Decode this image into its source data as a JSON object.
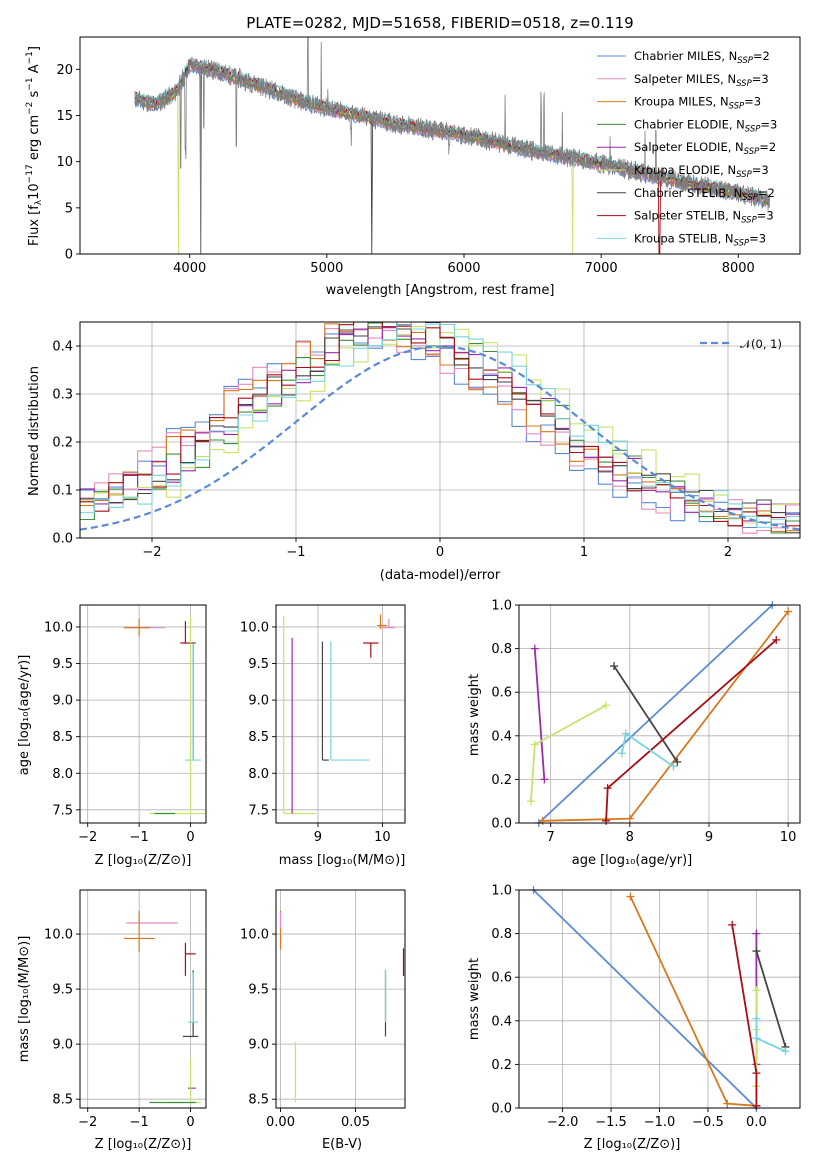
{
  "colors": {
    "Chabrier MILES": "#5b8bd6",
    "Salpeter MILES": "#e58ac2",
    "Kroupa MILES": "#d8781e",
    "Chabrier ELODIE": "#3f8f3f",
    "Salpeter ELODIE": "#9c2bab",
    "Kroupa ELODIE": "#c8e36c",
    "Chabrier STELIB": "#454545",
    "Salpeter STELIB": "#a80d14",
    "Kroupa STELIB": "#79d4db",
    "data": "#808080"
  },
  "chart_data": [
    {
      "id": "spectrum",
      "type": "line",
      "title": "PLATE=0282, MJD=51658, FIBERID=0518, z=0.119",
      "xlabel": "wavelength [Angstrom, rest frame]",
      "ylabel": "Flux [fλ10⁻¹⁷ erg cm⁻² s⁻¹ A⁻¹]",
      "xlim": [
        3200,
        8450
      ],
      "ylim": [
        0,
        23.5
      ],
      "xticks": [
        4000,
        5000,
        6000,
        7000,
        8000
      ],
      "yticks": [
        0,
        5,
        10,
        15,
        20
      ],
      "legend_position": "top-right",
      "legend": [
        {
          "base": "Chabrier MILES, N",
          "sub": "SSP",
          "tail": "=2",
          "color": "#5b8bd6"
        },
        {
          "base": "Salpeter MILES, N",
          "sub": "SSP",
          "tail": "=3",
          "color": "#e58ac2"
        },
        {
          "base": "Kroupa MILES, N",
          "sub": "SSP",
          "tail": "=3",
          "color": "#d8781e"
        },
        {
          "base": "Chabrier ELODIE, N",
          "sub": "SSP",
          "tail": "=3",
          "color": "#3f8f3f"
        },
        {
          "base": "Salpeter ELODIE, N",
          "sub": "SSP",
          "tail": "=2",
          "color": "#9c2bab"
        },
        {
          "base": "Kroupa ELODIE, N",
          "sub": "SSP",
          "tail": "=3",
          "color": "#c8e36c"
        },
        {
          "base": "Chabrier STELIB, N",
          "sub": "SSP",
          "tail": "=2",
          "color": "#454545"
        },
        {
          "base": "Salpeter STELIB, N",
          "sub": "SSP",
          "tail": "=3",
          "color": "#a80d14"
        },
        {
          "base": "Kroupa STELIB, N",
          "sub": "SSP",
          "tail": "=3",
          "color": "#79d4db"
        }
      ],
      "continuum": [
        [
          3600,
          16.8
        ],
        [
          3750,
          16.2
        ],
        [
          3900,
          17.5
        ],
        [
          4000,
          20.5
        ],
        [
          4200,
          19.8
        ],
        [
          4500,
          18.3
        ],
        [
          4800,
          16.6
        ],
        [
          5000,
          15.8
        ],
        [
          5500,
          14.1
        ],
        [
          6000,
          12.9
        ],
        [
          6500,
          11.2
        ],
        [
          7000,
          9.8
        ],
        [
          7500,
          8.1
        ],
        [
          8000,
          6.6
        ],
        [
          8230,
          5.8
        ]
      ],
      "emission_lines": [
        [
          4861,
          13.5
        ],
        [
          4959,
          7.0
        ],
        [
          5007,
          2.0
        ],
        [
          6300,
          6.0
        ],
        [
          6563,
          7.0
        ],
        [
          6583,
          5.5
        ],
        [
          6717,
          4.0
        ],
        [
          7065,
          4.0
        ],
        [
          7320,
          4.0
        ],
        [
          7400,
          6.0
        ]
      ],
      "absorption_lines": [
        [
          3934,
          -10
        ],
        [
          3969,
          -9
        ],
        [
          4102,
          -6
        ],
        [
          4340,
          -8
        ],
        [
          4861,
          -5
        ],
        [
          5175,
          -2.5
        ],
        [
          5892,
          -2
        ],
        [
          6563,
          -1.5
        ]
      ],
      "model_drops": [
        [
          3530,
          "#d8781e"
        ],
        [
          3920,
          "#c8e36c"
        ],
        [
          4080,
          "#454545"
        ],
        [
          5330,
          "#454545"
        ],
        [
          6790,
          "#c8e36c"
        ],
        [
          7425,
          "#a80d14"
        ]
      ]
    },
    {
      "id": "residuals",
      "type": "histogram",
      "xlabel": "(data-model)/error",
      "ylabel": "Normed distribution",
      "xlim": [
        -2.5,
        2.5
      ],
      "ylim": [
        0,
        0.45
      ],
      "xticks": [
        -2,
        -1,
        0,
        1,
        2
      ],
      "yticks": [
        0.0,
        0.1,
        0.2,
        0.3,
        0.4
      ],
      "legend_position": "top-right",
      "reference_label": "𝒩(0, 1)",
      "reference_color": "#5b8bd6",
      "bin_width": 0.1,
      "bin_start": -2.5,
      "series": [
        {
          "name": "Chabrier MILES",
          "color": "#5b8bd6",
          "offset": -0.55,
          "seed": 1
        },
        {
          "name": "Salpeter MILES",
          "color": "#e58ac2",
          "offset": -0.5,
          "seed": 2
        },
        {
          "name": "Kroupa MILES",
          "color": "#d8781e",
          "offset": -0.45,
          "seed": 3
        },
        {
          "name": "Chabrier ELODIE",
          "color": "#3f8f3f",
          "offset": -0.25,
          "seed": 4
        },
        {
          "name": "Salpeter ELODIE",
          "color": "#9c2bab",
          "offset": -0.3,
          "seed": 5
        },
        {
          "name": "Kroupa ELODIE",
          "color": "#c8e36c",
          "offset": -0.1,
          "seed": 6
        },
        {
          "name": "Chabrier STELIB",
          "color": "#454545",
          "offset": -0.3,
          "seed": 7
        },
        {
          "name": "Salpeter STELIB",
          "color": "#a80d14",
          "offset": -0.35,
          "seed": 8
        },
        {
          "name": "Kroupa STELIB",
          "color": "#79d4db",
          "offset": -0.2,
          "seed": 9
        }
      ]
    },
    {
      "id": "age_vs_Z",
      "type": "errorbar",
      "xlabel": "Z [log₁₀(Z/Z⊙)]",
      "ylabel": "age  [log₁₀(age/yr)]",
      "xlim": [
        -2.15,
        0.3
      ],
      "ylim": [
        7.32,
        10.3
      ],
      "xticks": [
        -2,
        -1,
        0
      ],
      "yticks": [
        7.5,
        8.0,
        8.5,
        9.0,
        9.5,
        10.0
      ],
      "points": [
        {
          "x": -0.9,
          "y": 9.99,
          "xerr": [
            0.4,
            0.4
          ],
          "yerr": [
            0,
            0
          ],
          "color": "#e58ac2"
        },
        {
          "x": -1.0,
          "y": 9.99,
          "xerr": [
            0.3,
            0.2
          ],
          "yerr": [
            0.12,
            0.12
          ],
          "color": "#d8781e"
        },
        {
          "x": -0.1,
          "y": 9.78,
          "xerr": [
            0.1,
            0.2
          ],
          "yerr": [
            0,
            0.3
          ],
          "color": "#a80d14"
        },
        {
          "x": 0.05,
          "y": 9.78,
          "xerr": [
            0,
            0
          ],
          "yerr": [
            1.6,
            0
          ],
          "color": "#454545"
        },
        {
          "x": 0.05,
          "y": 9.78,
          "xerr": [
            0,
            0
          ],
          "yerr": [
            1.6,
            0
          ],
          "color": "#79d4db"
        },
        {
          "x": 0.0,
          "y": 8.18,
          "xerr": [
            0.1,
            0.2
          ],
          "yerr": [
            0,
            0
          ],
          "color": "#79d4db"
        },
        {
          "x": 0.0,
          "y": 7.45,
          "xerr": [
            0.8,
            0.3
          ],
          "yerr": [
            0,
            2.7
          ],
          "color": "#c8e36c"
        },
        {
          "x": -0.5,
          "y": 7.45,
          "xerr": [
            0.2,
            0.2
          ],
          "yerr": [
            0,
            0
          ],
          "color": "#3f8f3f"
        }
      ]
    },
    {
      "id": "age_vs_mass",
      "type": "errorbar",
      "xlabel": "mass [log₁₀(M/M⊙)]",
      "ylabel": "",
      "xlim": [
        8.35,
        10.35
      ],
      "ylim": [
        7.32,
        10.3
      ],
      "xticks": [
        9,
        10
      ],
      "yticks": [
        7.5,
        8.0,
        8.5,
        9.0,
        9.5,
        10.0
      ],
      "points": [
        {
          "x": 8.47,
          "y": 7.45,
          "xerr": [
            0,
            0.5
          ],
          "yerr": [
            0,
            2.7
          ],
          "color": "#c8e36c"
        },
        {
          "x": 8.6,
          "y": 7.45,
          "xerr": [
            0,
            0
          ],
          "yerr": [
            0,
            2.4
          ],
          "color": "#9c2bab"
        },
        {
          "x": 9.07,
          "y": 8.18,
          "xerr": [
            0,
            0.1
          ],
          "yerr": [
            0,
            1.62
          ],
          "color": "#454545"
        },
        {
          "x": 9.2,
          "y": 8.18,
          "xerr": [
            0,
            0.6
          ],
          "yerr": [
            0,
            1.62
          ],
          "color": "#79d4db"
        },
        {
          "x": 9.82,
          "y": 9.78,
          "xerr": [
            0.12,
            0.12
          ],
          "yerr": [
            0.2,
            0
          ],
          "color": "#a80d14"
        },
        {
          "x": 9.97,
          "y": 10.02,
          "xerr": [
            0.05,
            0.1
          ],
          "yerr": [
            0.05,
            0.15
          ],
          "color": "#d8781e"
        },
        {
          "x": 10.1,
          "y": 9.99,
          "xerr": [
            0.1,
            0.1
          ],
          "yerr": [
            0,
            0.12
          ],
          "color": "#e58ac2"
        }
      ]
    },
    {
      "id": "weight_vs_age",
      "type": "line",
      "xlabel": "age  [log₁₀(age/yr)]",
      "ylabel": "mass weight",
      "xlim": [
        6.6,
        10.15
      ],
      "ylim": [
        0,
        1
      ],
      "xticks": [
        7,
        8,
        9,
        10
      ],
      "yticks": [
        0.0,
        0.2,
        0.4,
        0.6,
        0.8,
        1.0
      ],
      "series": [
        {
          "name": "Chabrier MILES",
          "color": "#5b8bd6",
          "points": [
            [
              6.85,
              0.0
            ],
            [
              9.8,
              1.0
            ]
          ]
        },
        {
          "name": "Kroupa MILES",
          "color": "#d8781e",
          "points": [
            [
              6.9,
              0.01
            ],
            [
              8.0,
              0.02
            ],
            [
              10.0,
              0.97
            ]
          ]
        },
        {
          "name": "Salpeter ELODIE",
          "color": "#9c2bab",
          "points": [
            [
              6.8,
              0.8
            ],
            [
              6.92,
              0.2
            ]
          ]
        },
        {
          "name": "Kroupa ELODIE",
          "color": "#c8e36c",
          "points": [
            [
              6.75,
              0.1
            ],
            [
              6.8,
              0.36
            ],
            [
              7.7,
              0.54
            ]
          ]
        },
        {
          "name": "Chabrier STELIB",
          "color": "#454545",
          "points": [
            [
              7.8,
              0.72
            ],
            [
              8.6,
              0.28
            ]
          ]
        },
        {
          "name": "Salpeter STELIB",
          "color": "#a80d14",
          "points": [
            [
              7.7,
              0.01
            ],
            [
              7.72,
              0.16
            ],
            [
              9.85,
              0.84
            ]
          ]
        },
        {
          "name": "Kroupa STELIB",
          "color": "#79d4db",
          "points": [
            [
              7.9,
              0.32
            ],
            [
              7.95,
              0.41
            ],
            [
              8.55,
              0.26
            ]
          ]
        }
      ]
    },
    {
      "id": "mass_vs_Z",
      "type": "errorbar",
      "xlabel": "Z [log₁₀(Z/Z⊙)]",
      "ylabel": "mass [log₁₀(M/M⊙)]",
      "xlim": [
        -2.15,
        0.3
      ],
      "ylim": [
        8.42,
        10.4
      ],
      "xticks": [
        -2,
        -1,
        0
      ],
      "yticks": [
        8.5,
        9.0,
        9.5,
        10.0
      ],
      "points": [
        {
          "x": -0.85,
          "y": 10.1,
          "xerr": [
            0.4,
            0.6
          ],
          "yerr": [
            0,
            0
          ],
          "color": "#e58ac2"
        },
        {
          "x": -1.0,
          "y": 9.96,
          "xerr": [
            0.3,
            0.3
          ],
          "yerr": [
            0.12,
            0.25
          ],
          "color": "#d8781e"
        },
        {
          "x": -0.1,
          "y": 9.82,
          "xerr": [
            0.0,
            0.2
          ],
          "yerr": [
            0.2,
            0.1
          ],
          "color": "#a80d14"
        },
        {
          "x": 0.05,
          "y": 9.07,
          "xerr": [
            0.2,
            0.1
          ],
          "yerr": [
            0,
            0.6
          ],
          "color": "#454545"
        },
        {
          "x": 0.05,
          "y": 9.2,
          "xerr": [
            0.1,
            0.1
          ],
          "yerr": [
            0,
            0.45
          ],
          "color": "#79d4db"
        },
        {
          "x": 0.0,
          "y": 8.6,
          "xerr": [
            0.05,
            0.1
          ],
          "yerr": [
            0,
            0
          ],
          "color": "#9c2bab"
        },
        {
          "x": 0.0,
          "y": 8.47,
          "xerr": [
            0.5,
            0.2
          ],
          "yerr": [
            0,
            0.4
          ],
          "color": "#c8e36c"
        },
        {
          "x": -0.4,
          "y": 8.47,
          "xerr": [
            0.4,
            0.5
          ],
          "yerr": [
            0,
            0
          ],
          "color": "#3f8f3f"
        }
      ]
    },
    {
      "id": "mass_vs_EBV",
      "type": "errorbar",
      "xlabel": "E(B-V)",
      "ylabel": "",
      "xlim": [
        -0.003,
        0.083
      ],
      "ylim": [
        8.42,
        10.4
      ],
      "xticks": [
        0.0,
        0.05
      ],
      "tick_labels": [
        "0.00",
        "0.05"
      ],
      "yticks": [
        8.5,
        9.0,
        9.5,
        10.0
      ],
      "points": [
        {
          "x": 0.0,
          "y": 9.96,
          "xerr": [
            0,
            0
          ],
          "yerr": [
            0.1,
            0.25
          ],
          "color": "#d8781e"
        },
        {
          "x": 0.0,
          "y": 10.1,
          "xerr": [
            0,
            0
          ],
          "yerr": [
            0.05,
            0.1
          ],
          "color": "#e58ac2"
        },
        {
          "x": 0.01,
          "y": 8.47,
          "xerr": [
            0,
            0
          ],
          "yerr": [
            0,
            0.55
          ],
          "color": "#c8e36c"
        },
        {
          "x": 0.07,
          "y": 9.07,
          "xerr": [
            0,
            0
          ],
          "yerr": [
            0,
            0.6
          ],
          "color": "#454545"
        },
        {
          "x": 0.07,
          "y": 9.2,
          "xerr": [
            0,
            0
          ],
          "yerr": [
            0,
            0.48
          ],
          "color": "#79d4db"
        },
        {
          "x": 0.082,
          "y": 9.82,
          "xerr": [
            0,
            0
          ],
          "yerr": [
            0.2,
            0.05
          ],
          "color": "#a80d14"
        }
      ]
    },
    {
      "id": "weight_vs_Z",
      "type": "line",
      "xlabel": "Z [log₁₀(Z/Z⊙)]",
      "ylabel": "mass weight",
      "xlim": [
        -2.45,
        0.45
      ],
      "ylim": [
        0,
        1
      ],
      "xticks": [
        -2.0,
        -1.5,
        -1.0,
        -0.5,
        0.0
      ],
      "tick_labels": [
        "−2.0",
        "−1.5",
        "−1.0",
        "−0.5",
        "0.0"
      ],
      "yticks": [
        0.0,
        0.2,
        0.4,
        0.6,
        0.8,
        1.0
      ],
      "series": [
        {
          "name": "Chabrier MILES",
          "color": "#5b8bd6",
          "points": [
            [
              -2.3,
              1.0
            ],
            [
              0.0,
              0.0
            ]
          ]
        },
        {
          "name": "Kroupa MILES",
          "color": "#d8781e",
          "points": [
            [
              -1.3,
              0.97
            ],
            [
              -0.3,
              0.02
            ],
            [
              0.0,
              0.01
            ]
          ]
        },
        {
          "name": "Salpeter ELODIE",
          "color": "#9c2bab",
          "points": [
            [
              0.0,
              0.8
            ],
            [
              0.0,
              0.2
            ]
          ]
        },
        {
          "name": "Kroupa ELODIE",
          "color": "#c8e36c",
          "points": [
            [
              0.0,
              0.54
            ],
            [
              0.0,
              0.36
            ],
            [
              0.0,
              0.1
            ]
          ]
        },
        {
          "name": "Chabrier STELIB",
          "color": "#454545",
          "points": [
            [
              0.0,
              0.72
            ],
            [
              0.3,
              0.28
            ]
          ]
        },
        {
          "name": "Salpeter STELIB",
          "color": "#a80d14",
          "points": [
            [
              -0.25,
              0.84
            ],
            [
              0.0,
              0.16
            ],
            [
              0.0,
              0.01
            ]
          ]
        },
        {
          "name": "Kroupa STELIB",
          "color": "#79d4db",
          "points": [
            [
              0.0,
              0.41
            ],
            [
              0.0,
              0.32
            ],
            [
              0.3,
              0.26
            ]
          ]
        }
      ]
    }
  ]
}
